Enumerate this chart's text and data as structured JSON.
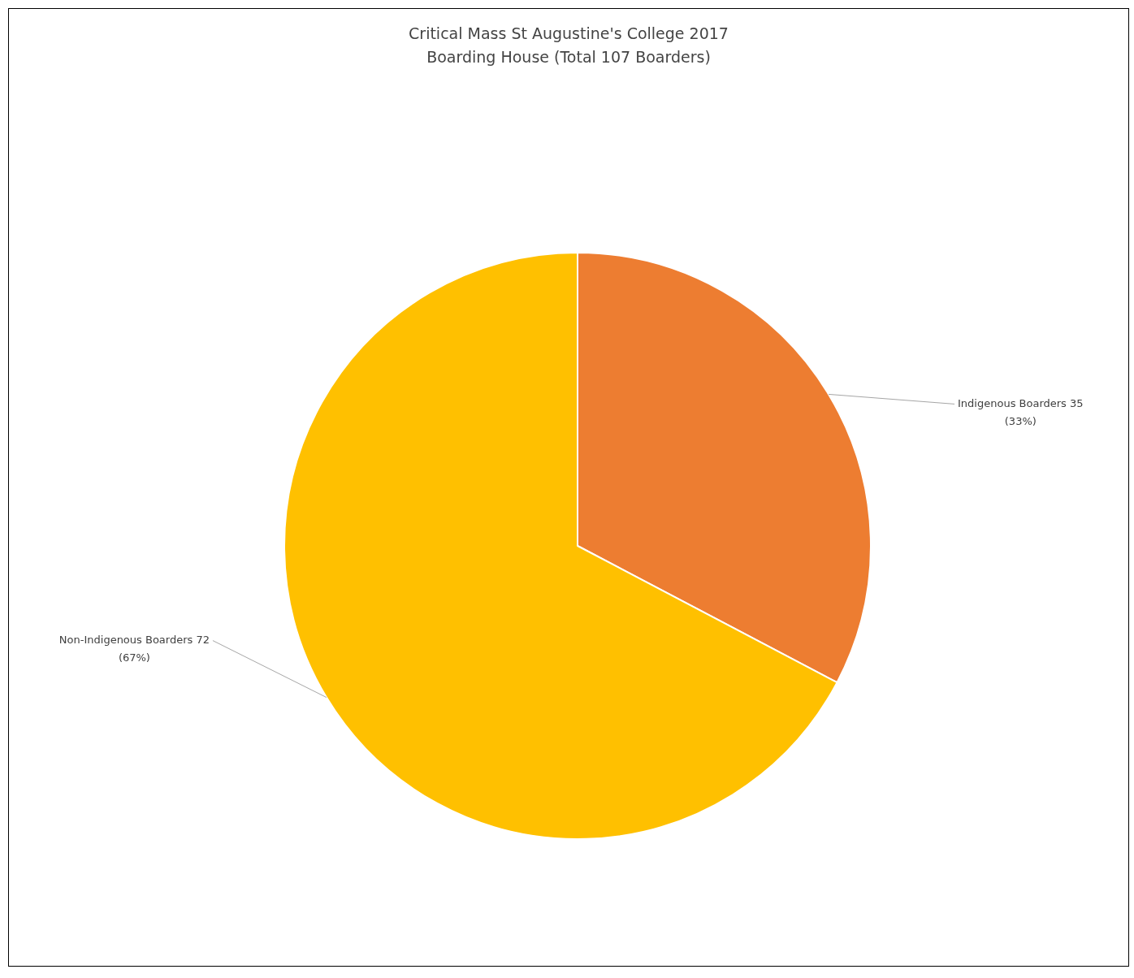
{
  "chart_data": {
    "type": "pie",
    "title": "Critical Mass St Augustine's College 2017",
    "subtitle": "Boarding House (Total 107 Boarders)",
    "categories": [
      "Indigenous Boarders",
      "Non-Indigenous Boarders"
    ],
    "values": [
      35,
      72
    ],
    "colors": [
      "#ed7d31",
      "#ffc000"
    ],
    "value_labels": [
      "35 (33%)",
      "72 (67%)"
    ],
    "legend": false
  }
}
